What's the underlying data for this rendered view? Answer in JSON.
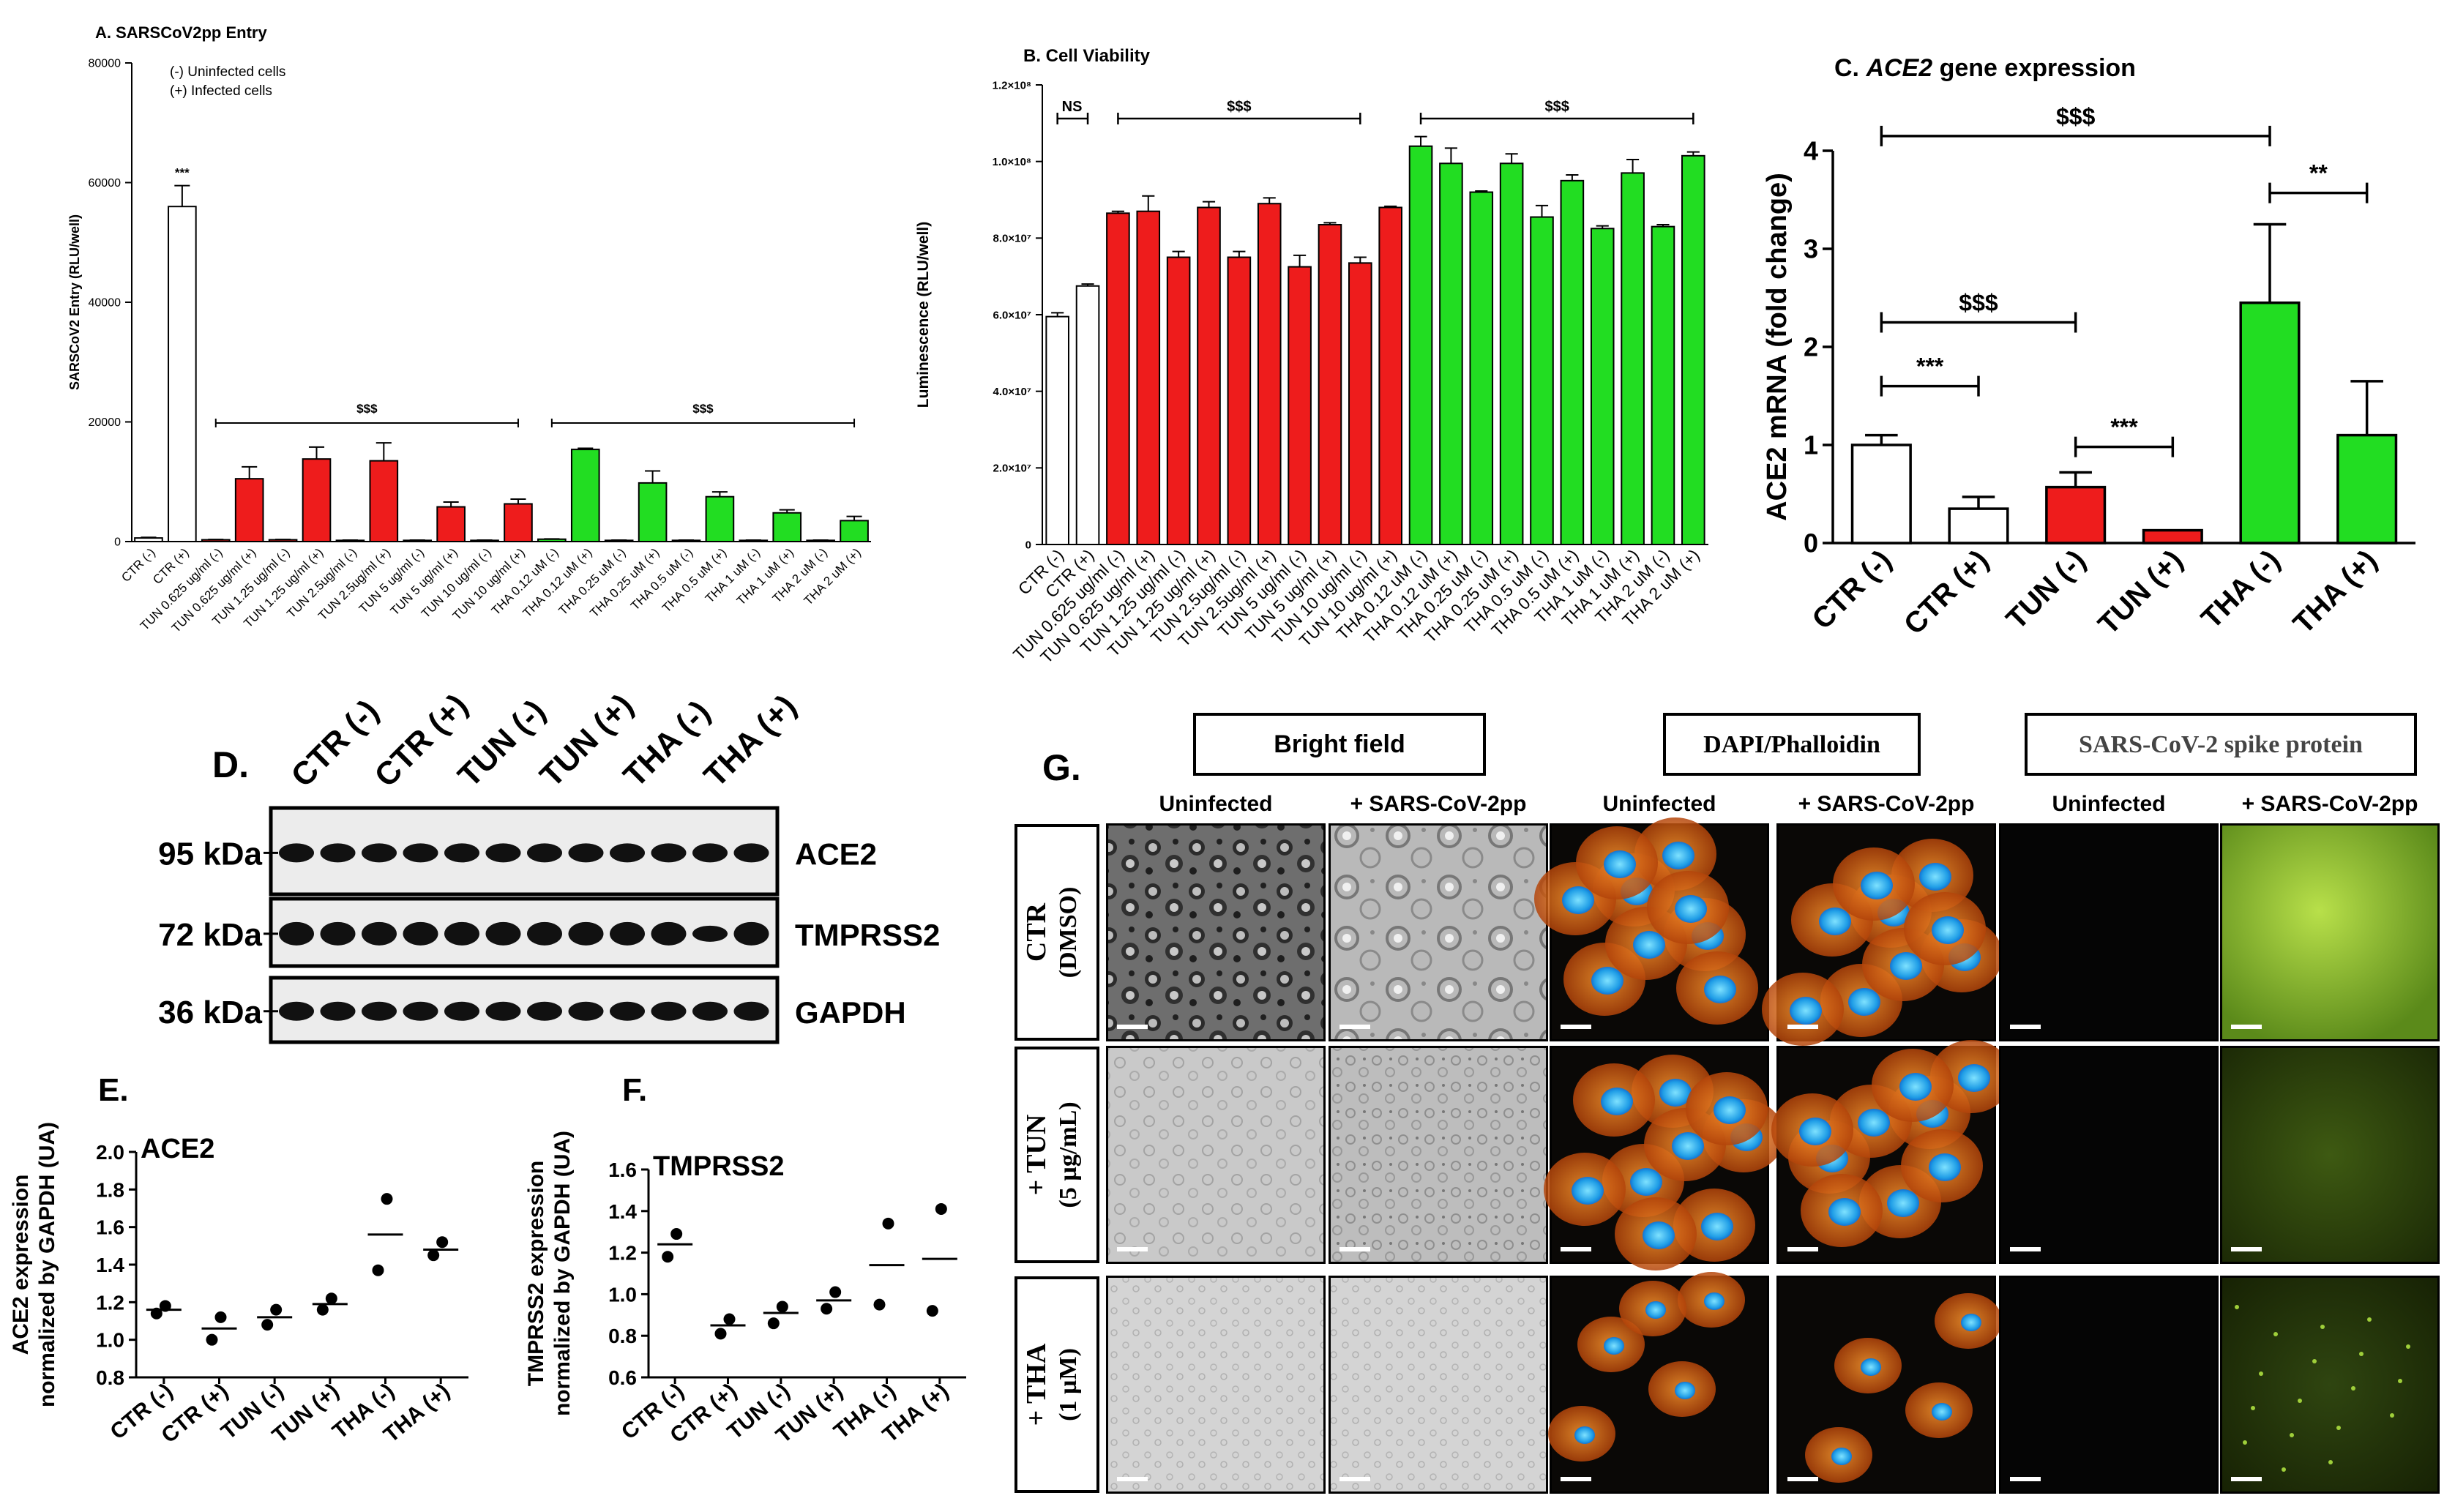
{
  "chart_data": [
    {
      "id": "A",
      "type": "bar",
      "title": "A. SARSCoV2pp Entry",
      "ylabel": "SARSCoV2 Entry (RLU/well)",
      "ylim": [
        0,
        80000
      ],
      "yticks": [
        0,
        20000,
        40000,
        60000,
        80000
      ],
      "legend": [
        "(-) Uninfected cells",
        "(+) Infected cells"
      ],
      "categories": [
        "CTR (-)",
        "CTR (+)",
        "TUN 0.625 ug/ml (-)",
        "TUN 0.625 ug/ml (+)",
        "TUN 1.25 ug/ml (-)",
        "TUN 1.25 ug/ml (+)",
        "TUN 2.5ug/ml (-)",
        "TUN 2.5ug/ml (+)",
        "TUN 5 ug/ml (-)",
        "TUN 5 ug/ml (+)",
        "TUN 10 ug/ml (-)",
        "TUN 10 ug/ml (+)",
        "THA 0.12 uM (-)",
        "THA 0.12 uM (+)",
        "THA 0.25 uM (-)",
        "THA 0.25 uM (+)",
        "THA 0.5 uM (-)",
        "THA 0.5 uM (+)",
        "THA 1 uM (-)",
        "THA 1 uM (+)",
        "THA 2 uM (-)",
        "THA 2 uM (+)"
      ],
      "values": [
        600,
        56000,
        300,
        10500,
        300,
        13800,
        200,
        13500,
        200,
        5800,
        200,
        6300,
        400,
        15400,
        200,
        9800,
        200,
        7500,
        200,
        4800,
        200,
        3500
      ],
      "errors": [
        100,
        3500,
        50,
        2000,
        50,
        2000,
        50,
        3000,
        50,
        800,
        50,
        800,
        50,
        200,
        50,
        2000,
        50,
        800,
        50,
        500,
        50,
        700
      ],
      "groups": [
        "ctr",
        "ctr",
        "tun",
        "tun",
        "tun",
        "tun",
        "tun",
        "tun",
        "tun",
        "tun",
        "tun",
        "tun",
        "tha",
        "tha",
        "tha",
        "tha",
        "tha",
        "tha",
        "tha",
        "tha",
        "tha",
        "tha"
      ],
      "annotations": [
        {
          "label": "***",
          "bar": 1
        },
        {
          "label": "$$$",
          "from": 2,
          "to": 11
        },
        {
          "label": "$$$",
          "from": 12,
          "to": 21
        }
      ]
    },
    {
      "id": "B",
      "type": "bar",
      "title": "B. Cell Viability",
      "ylabel": "Luminescence (RLU/well)",
      "ylim": [
        0,
        12
      ],
      "yticks": [
        0,
        2,
        4,
        6,
        8,
        10,
        12
      ],
      "ytick_labels": [
        "0",
        "2.0×10⁷",
        "4.0×10⁷",
        "6.0×10⁷",
        "8.0×10⁷",
        "1.0×10⁸",
        "1.2×10⁸"
      ],
      "categories": [
        "CTR (-)",
        "CTR (+)",
        "TUN 0.625 ug/ml (-)",
        "TUN 0.625 ug/ml (+)",
        "TUN 1.25 ug/ml (-)",
        "TUN 1.25 ug/ml (+)",
        "TUN 2.5ug/ml (-)",
        "TUN 2.5ug/ml (+)",
        "TUN 5 ug/ml (-)",
        "TUN 5 ug/ml (+)",
        "TUN 10 ug/ml (-)",
        "TUN 10 ug/ml (+)",
        "THA 0.12 uM (-)",
        "THA 0.12 uM (+)",
        "THA 0.25 uM (-)",
        "THA 0.25 uM (+)",
        "THA 0.5 uM (-)",
        "THA 0.5 uM (+)",
        "THA 1 uM (-)",
        "THA 1 uM (+)",
        "THA 2 uM (-)",
        "THA 2 uM (+)"
      ],
      "values": [
        5.95,
        6.75,
        8.65,
        8.7,
        7.5,
        8.8,
        7.5,
        8.9,
        7.25,
        8.35,
        7.35,
        8.8,
        10.4,
        9.95,
        9.2,
        9.95,
        8.55,
        9.5,
        8.25,
        9.7,
        8.3,
        10.15
      ],
      "errors": [
        0.1,
        0.05,
        0.05,
        0.4,
        0.15,
        0.15,
        0.15,
        0.15,
        0.3,
        0.05,
        0.15,
        0.03,
        0.25,
        0.4,
        0.03,
        0.25,
        0.3,
        0.15,
        0.07,
        0.35,
        0.05,
        0.1
      ],
      "groups": [
        "ctr",
        "ctr",
        "tun",
        "tun",
        "tun",
        "tun",
        "tun",
        "tun",
        "tun",
        "tun",
        "tun",
        "tun",
        "tha",
        "tha",
        "tha",
        "tha",
        "tha",
        "tha",
        "tha",
        "tha",
        "tha",
        "tha"
      ],
      "annotations": [
        {
          "label": "NS",
          "from": 0,
          "to": 1
        },
        {
          "label": "$$$",
          "from": 2,
          "to": 10
        },
        {
          "label": "$$$",
          "from": 12,
          "to": 21
        }
      ]
    },
    {
      "id": "C",
      "type": "bar",
      "title_prefix": "C. ",
      "title_italic": "ACE2",
      "title_suffix": " gene expression",
      "ylabel": "ACE2 mRNA (fold change)",
      "ylim": [
        0,
        4
      ],
      "yticks": [
        0,
        1,
        2,
        3,
        4
      ],
      "categories": [
        "CTR (-)",
        "CTR (+)",
        "TUN (-)",
        "TUN (+)",
        "THA (-)",
        "THA (+)"
      ],
      "values": [
        1.0,
        0.35,
        0.57,
        0.13,
        2.45,
        1.1
      ],
      "errors": [
        0.1,
        0.12,
        0.15,
        0.0,
        0.8,
        0.55
      ],
      "groups": [
        "ctr",
        "ctr",
        "tun",
        "tun",
        "tha",
        "tha"
      ],
      "annotations": [
        {
          "label": "$$$",
          "from": 0,
          "to": 4,
          "y": 4.15
        },
        {
          "label": "$$$",
          "from": 0,
          "to": 2,
          "y": 2.25
        },
        {
          "label": "***",
          "from": 0,
          "to": 1,
          "y": 1.6
        },
        {
          "label": "***",
          "from": 2,
          "to": 3,
          "y": 0.98
        },
        {
          "label": "**",
          "from": 4,
          "to": 5,
          "y": 3.57
        }
      ]
    },
    {
      "id": "E",
      "type": "scatter",
      "panel_label": "E.",
      "title": "ACE2",
      "ylabel_lines": [
        "ACE2 expression",
        "normalized by GAPDH (UA)"
      ],
      "ylim": [
        0.8,
        2.0
      ],
      "yticks": [
        0.8,
        1.0,
        1.2,
        1.4,
        1.6,
        1.8,
        2.0
      ],
      "ytick_labels": [
        "0.8",
        "1.0",
        "1.2",
        "1.4",
        "1.6",
        "1.8",
        "2.0"
      ],
      "categories": [
        "CTR (-)",
        "CTR (+)",
        "TUN (-)",
        "TUN (+)",
        "THA (-)",
        "THA (+)"
      ],
      "points": [
        [
          1.18,
          1.14
        ],
        [
          1.12,
          1.0
        ],
        [
          1.16,
          1.08
        ],
        [
          1.22,
          1.16
        ],
        [
          1.75,
          1.37
        ],
        [
          1.52,
          1.45
        ]
      ],
      "means": [
        1.16,
        1.06,
        1.12,
        1.19,
        1.56,
        1.48
      ]
    },
    {
      "id": "F",
      "type": "scatter",
      "panel_label": "F.",
      "title": "TMPRSS2",
      "ylabel_lines": [
        "TMPRSS2 expression",
        "normalized by GAPDH (UA)"
      ],
      "ylim": [
        0.6,
        1.6
      ],
      "yticks": [
        0.6,
        0.8,
        1.0,
        1.2,
        1.4,
        1.6
      ],
      "ytick_labels": [
        "0.6",
        "0.8",
        "1.0",
        "1.2",
        "1.4",
        "1.6"
      ],
      "categories": [
        "CTR (-)",
        "CTR (+)",
        "TUN (-)",
        "TUN (+)",
        "THA (-)",
        "THA (+)"
      ],
      "points": [
        [
          1.29,
          1.18
        ],
        [
          0.88,
          0.81
        ],
        [
          0.94,
          0.86
        ],
        [
          1.01,
          0.93
        ],
        [
          1.34,
          0.95
        ],
        [
          1.41,
          0.92
        ]
      ],
      "means": [
        1.24,
        0.85,
        0.91,
        0.97,
        1.14,
        1.17
      ]
    }
  ],
  "colors": {
    "ctr": "#ffffff",
    "tun": "#ee1c1c",
    "tha": "#22dd22",
    "axis": "#000000"
  },
  "western": {
    "panel_label": "D.",
    "lanes": [
      "CTR (-)",
      "CTR (+)",
      "TUN (-)",
      "TUN (+)",
      "THA (-)",
      "THA (+)"
    ],
    "rows": [
      {
        "kda": "95 kDa",
        "protein": "ACE2"
      },
      {
        "kda": "72 kDa",
        "protein": "TMPRSS2"
      },
      {
        "kda": "36 kDa",
        "protein": "GAPDH"
      }
    ]
  },
  "imaging": {
    "panel_label": "G.",
    "headers": [
      "Bright field",
      "DAPI/Phalloidin",
      "SARS-CoV-2 spike protein"
    ],
    "subheaders": [
      "Uninfected",
      "+ SARS-CoV-2pp",
      "Uninfected",
      "+ SARS-CoV-2pp",
      "Uninfected",
      "+ SARS-CoV-2pp"
    ],
    "rows": [
      {
        "line1": "CTR",
        "line2": "(DMSO)"
      },
      {
        "line1": "+ TUN",
        "line2": "(5 µg/mL)"
      },
      {
        "line1": "+ THA",
        "line2": "(1 µM)"
      }
    ]
  }
}
